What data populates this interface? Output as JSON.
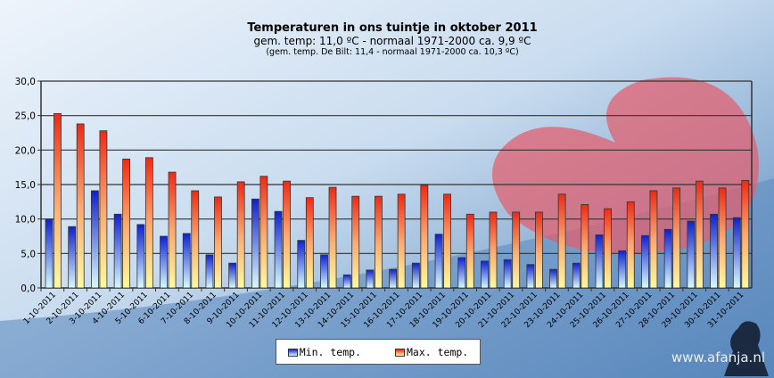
{
  "chart_data": {
    "type": "bar",
    "title": "Temperaturen  in ons tuintje in oktober 2011",
    "subtitle": "gem. temp: 11,0 ºC - normaal 1971-2000 ca. 9,9 ºC",
    "subtitle2": "(gem. temp. De Bilt: 11,4 - normaal 1971-2000 ca. 10,3 ºC)",
    "xlabel": "",
    "ylabel": "",
    "ylim": [
      0,
      30
    ],
    "yticks": [
      "0,0",
      "5,0",
      "10,0",
      "15,0",
      "20,0",
      "25,0",
      "30,0"
    ],
    "grid": true,
    "legend_position": "bottom",
    "categories": [
      "1-10-2011",
      "2-10-2011",
      "3-10-2011",
      "4-10-2011",
      "5-10-2011",
      "6-10-2011",
      "7-10-2011",
      "8-10-2011",
      "9-10-2011",
      "10-10-2011",
      "11-10-2011",
      "12-10-2011",
      "13-10-2011",
      "14-10-2011",
      "15-10-2011",
      "16-10-2011",
      "17-10-2011",
      "18-10-2011",
      "19-10-2011",
      "20-10-2011",
      "21-10-2011",
      "22-10-2011",
      "23-10-2011",
      "24-10-2011",
      "25-10-2011",
      "26-10-2011",
      "27-10-2011",
      "28-10-2011",
      "29-10-2011",
      "30-10-2011",
      "31-10-2011"
    ],
    "series": [
      {
        "name": "Min. temp.",
        "color": "#1a2fd6",
        "values": [
          10.0,
          8.9,
          14.1,
          10.7,
          9.2,
          7.5,
          7.9,
          4.8,
          3.6,
          12.9,
          11.1,
          6.9,
          4.8,
          1.9,
          2.6,
          2.7,
          3.6,
          7.8,
          4.4,
          3.9,
          4.1,
          3.4,
          2.7,
          3.6,
          7.7,
          5.4,
          7.6,
          8.5,
          9.7,
          10.7,
          10.2
        ]
      },
      {
        "name": "Max. temp.",
        "color": "#e8301a",
        "values": [
          25.3,
          23.8,
          22.8,
          18.7,
          18.9,
          16.8,
          14.1,
          13.2,
          15.4,
          16.2,
          15.5,
          13.1,
          14.6,
          13.3,
          13.3,
          13.6,
          14.9,
          13.6,
          10.7,
          11.0,
          11.0,
          11.0,
          13.6,
          12.1,
          11.5,
          12.5,
          14.1,
          14.5,
          15.5,
          14.5,
          15.6
        ]
      }
    ]
  },
  "watermark": "www.afanja.nl"
}
